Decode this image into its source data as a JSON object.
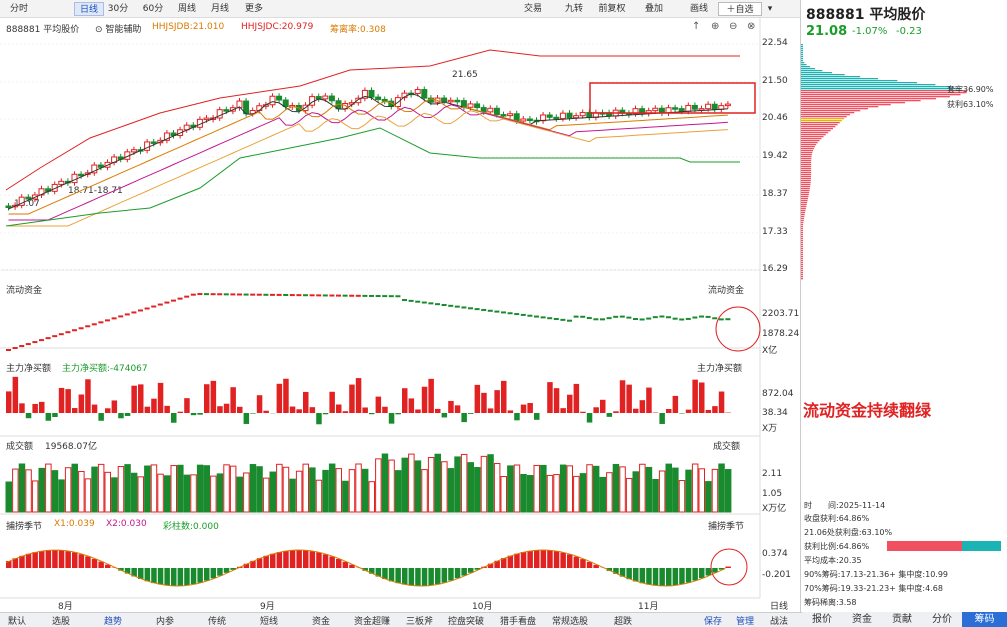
{
  "toolbar": {
    "tabs": [
      "分时",
      "日线",
      "30分",
      "60分",
      "周线",
      "月线",
      "更多"
    ],
    "active": "日线",
    "right": [
      "交易",
      "九转",
      "前复权",
      "叠加",
      "画线"
    ],
    "watch": "自选"
  },
  "stock": {
    "code": "888881",
    "name": "平均股价",
    "price": "21.08",
    "change_pct": "-1.07%",
    "change": "-0.23"
  },
  "main_legend": {
    "code_name": "888881 平均股价",
    "assist": "智能辅助",
    "hjb": "HHJSJDB:21.010",
    "hjc": "HHJSJDC:20.979",
    "chouma": "筹离率:0.308"
  },
  "price_axis": [
    "22.54",
    "21.50",
    "20.46",
    "19.42",
    "18.37",
    "17.33",
    "16.29"
  ],
  "annotations": {
    "high": "21.65",
    "low1": "18.07",
    "low2": "18.71-18.71"
  },
  "chip": {
    "loss": "套牢36.90%",
    "profit": "获利63.10%"
  },
  "panel_flow": {
    "title": "流动资金",
    "right_label": "流动资金",
    "axis": [
      "2203.71",
      "1878.24",
      "X亿"
    ]
  },
  "panel_main": {
    "title": "主力净买额",
    "legend": "主力净买额:-474067",
    "right_label": "主力净买额",
    "axis": [
      "872.04",
      "38.34",
      "X万"
    ]
  },
  "panel_vol": {
    "title": "成交额",
    "legend": "19568.07亿",
    "right_label": "成交额",
    "axis": [
      "2.11",
      "1.05",
      "X万亿"
    ]
  },
  "panel_season": {
    "title": "捕捞季节",
    "x1": "X1:0.039",
    "x2": "X2:0.030",
    "bars": "彩柱数:0.000",
    "right_label": "捕捞季节",
    "axis": [
      "0.374",
      "-0.201"
    ]
  },
  "months": [
    "8月",
    "9月",
    "10月",
    "11月"
  ],
  "note": "流动资金持续翻绿",
  "chip_info": [
    "时　　间:2025-11-14",
    "收盘获利:64.86%",
    "21.06处获利盘:63.10%",
    "获利比例:64.86%",
    "平均成本:20.35",
    "90%筹码:17.13-21.36+ 集中度:10.99",
    "70%筹码:19.33-21.23+ 集中度:4.68",
    "筹码稀离:3.58"
  ],
  "bottom_tabs": [
    "默认",
    "选股",
    "趋势",
    "内参",
    "传统",
    "短线",
    "资金",
    "资金超赚",
    "三板斧",
    "控盘突破",
    "猎手看盘",
    "常规选股",
    "超跌"
  ],
  "bottom_active": "趋势",
  "bottom_right": [
    "保存",
    "管理",
    "战法"
  ],
  "bottom_right_x": "日线",
  "right_tabs": [
    "报价",
    "资金",
    "贡献",
    "分价",
    "筹码"
  ],
  "right_tab_active": "筹码",
  "colors": {
    "up": "#e02222",
    "down": "#1a8a2e"
  }
}
